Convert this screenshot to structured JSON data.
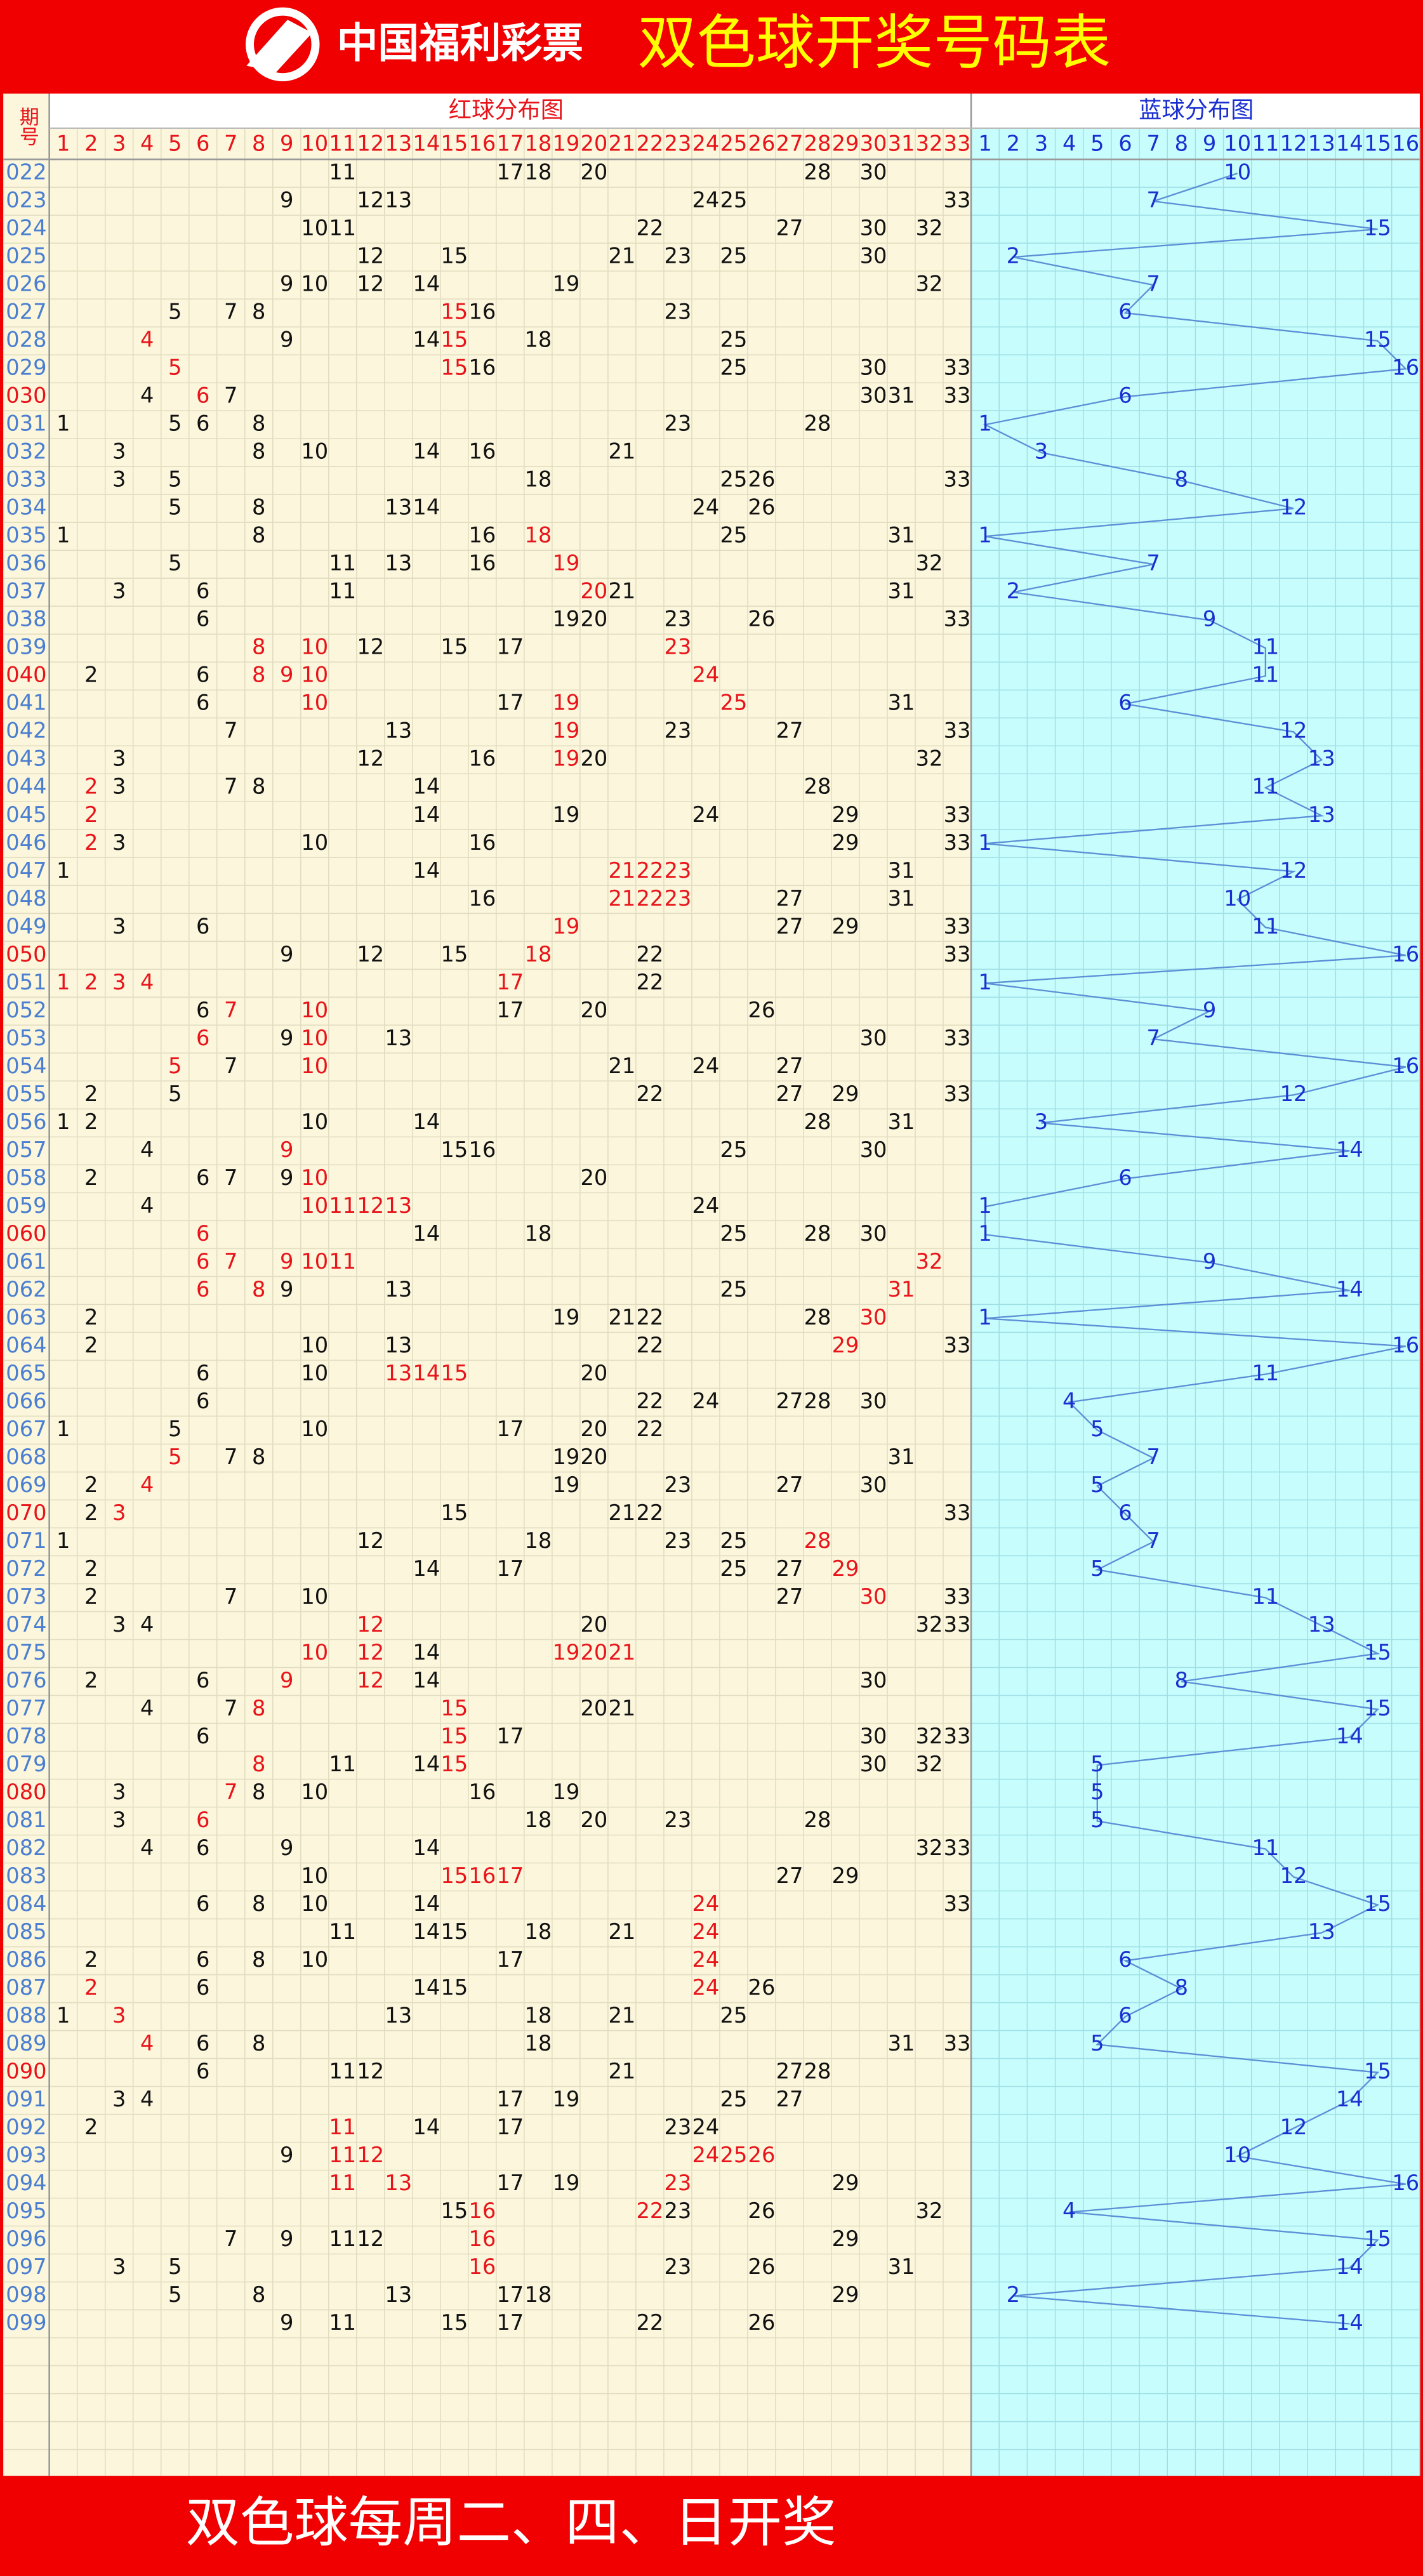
{
  "header": {
    "logo": "中国福利彩票",
    "title": "双色球开奖号码表"
  },
  "table": {
    "period_head": "期号",
    "red_head": "红球分布图",
    "blue_head": "蓝球分布图",
    "red_columns": [
      1,
      2,
      3,
      4,
      5,
      6,
      7,
      8,
      9,
      10,
      11,
      12,
      13,
      14,
      15,
      16,
      17,
      18,
      19,
      20,
      21,
      22,
      23,
      24,
      25,
      26,
      27,
      28,
      29,
      30,
      31,
      32,
      33
    ],
    "blue_columns": [
      1,
      2,
      3,
      4,
      5,
      6,
      7,
      8,
      9,
      10,
      11,
      12,
      13,
      14,
      15,
      16
    ],
    "highlight_color": "#e8141a",
    "rows": [
      {
        "period": "022",
        "red": [
          11,
          17,
          18,
          20,
          28,
          30
        ],
        "blue": 10
      },
      {
        "period": "023",
        "red": [
          9,
          12,
          13,
          24,
          25,
          33
        ],
        "blue": 7
      },
      {
        "period": "024",
        "red": [
          10,
          11,
          22,
          27,
          30,
          32
        ],
        "blue": 15
      },
      {
        "period": "025",
        "red": [
          12,
          15,
          21,
          23,
          25,
          30
        ],
        "blue": 2
      },
      {
        "period": "026",
        "red": [
          9,
          10,
          12,
          14,
          19,
          32
        ],
        "blue": 7
      },
      {
        "period": "027",
        "red": [
          5,
          7,
          8,
          15,
          16,
          23
        ],
        "blue": 6,
        "highlight": [
          15
        ]
      },
      {
        "period": "028",
        "red": [
          4,
          9,
          14,
          15,
          18,
          25
        ],
        "blue": 15,
        "highlight": [
          4,
          15
        ]
      },
      {
        "period": "029",
        "red": [
          5,
          15,
          16,
          25,
          30,
          33
        ],
        "blue": 16,
        "highlight": [
          5,
          15
        ]
      },
      {
        "period": "030",
        "red": [
          4,
          6,
          7,
          30,
          31,
          33
        ],
        "blue": 6,
        "highlight": [
          6
        ],
        "period_red": true
      },
      {
        "period": "031",
        "red": [
          1,
          5,
          6,
          8,
          23,
          28
        ],
        "blue": 1
      },
      {
        "period": "032",
        "red": [
          3,
          8,
          10,
          14,
          16,
          21
        ],
        "blue": 3
      },
      {
        "period": "033",
        "red": [
          3,
          5,
          18,
          25,
          26,
          33
        ],
        "blue": 8
      },
      {
        "period": "034",
        "red": [
          5,
          8,
          13,
          14,
          24,
          26
        ],
        "blue": 12
      },
      {
        "period": "035",
        "red": [
          1,
          8,
          16,
          18,
          25,
          31
        ],
        "blue": 1,
        "highlight": [
          18
        ]
      },
      {
        "period": "036",
        "red": [
          5,
          11,
          13,
          16,
          19,
          32
        ],
        "blue": 7,
        "highlight": [
          19
        ]
      },
      {
        "period": "037",
        "red": [
          3,
          6,
          11,
          20,
          21,
          31
        ],
        "blue": 2,
        "highlight": [
          20
        ]
      },
      {
        "period": "038",
        "red": [
          6,
          19,
          20,
          23,
          26,
          33
        ],
        "blue": 9
      },
      {
        "period": "039",
        "red": [
          8,
          10,
          12,
          15,
          17,
          23
        ],
        "blue": 11,
        "highlight": [
          8,
          10,
          23
        ]
      },
      {
        "period": "040",
        "red": [
          2,
          6,
          8,
          9,
          10,
          24
        ],
        "blue": 11,
        "highlight": [
          8,
          9,
          10,
          24
        ],
        "period_red": true
      },
      {
        "period": "041",
        "red": [
          6,
          10,
          17,
          19,
          25,
          31
        ],
        "blue": 6,
        "highlight": [
          10,
          19,
          25
        ]
      },
      {
        "period": "042",
        "red": [
          7,
          13,
          19,
          23,
          27,
          33
        ],
        "blue": 12,
        "highlight": [
          19
        ]
      },
      {
        "period": "043",
        "red": [
          3,
          12,
          16,
          19,
          20,
          32
        ],
        "blue": 13,
        "highlight": [
          19
        ]
      },
      {
        "period": "044",
        "red": [
          2,
          3,
          7,
          8,
          14,
          28
        ],
        "blue": 11,
        "highlight": [
          2
        ]
      },
      {
        "period": "045",
        "red": [
          2,
          14,
          19,
          24,
          29,
          33
        ],
        "blue": 13,
        "highlight": [
          2
        ]
      },
      {
        "period": "046",
        "red": [
          2,
          3,
          10,
          16,
          29,
          33
        ],
        "blue": 1,
        "highlight": [
          2
        ]
      },
      {
        "period": "047",
        "red": [
          1,
          14,
          21,
          22,
          23,
          31
        ],
        "blue": 12,
        "highlight": [
          21,
          22,
          23
        ]
      },
      {
        "period": "048",
        "red": [
          16,
          21,
          22,
          23,
          27,
          31
        ],
        "blue": 10,
        "highlight": [
          21,
          22,
          23
        ]
      },
      {
        "period": "049",
        "red": [
          3,
          6,
          19,
          27,
          29,
          33
        ],
        "blue": 11,
        "highlight": [
          19
        ]
      },
      {
        "period": "050",
        "red": [
          9,
          12,
          15,
          18,
          22,
          33
        ],
        "blue": 16,
        "highlight": [
          18
        ],
        "period_red": true
      },
      {
        "period": "051",
        "red": [
          1,
          2,
          3,
          4,
          17,
          22
        ],
        "blue": 1,
        "highlight": [
          1,
          2,
          3,
          4,
          17
        ]
      },
      {
        "period": "052",
        "red": [
          6,
          7,
          10,
          17,
          20,
          26
        ],
        "blue": 9,
        "highlight": [
          7,
          10
        ]
      },
      {
        "period": "053",
        "red": [
          6,
          9,
          10,
          13,
          30,
          33
        ],
        "blue": 7,
        "highlight": [
          6,
          10
        ]
      },
      {
        "period": "054",
        "red": [
          5,
          7,
          10,
          21,
          24,
          27
        ],
        "blue": 16,
        "highlight": [
          5,
          10
        ]
      },
      {
        "period": "055",
        "red": [
          2,
          5,
          22,
          27,
          29,
          33
        ],
        "blue": 12
      },
      {
        "period": "056",
        "red": [
          1,
          2,
          10,
          14,
          28,
          31
        ],
        "blue": 3
      },
      {
        "period": "057",
        "red": [
          4,
          9,
          15,
          16,
          25,
          30
        ],
        "blue": 14,
        "highlight": [
          9
        ]
      },
      {
        "period": "058",
        "red": [
          2,
          6,
          7,
          9,
          10,
          20
        ],
        "blue": 6,
        "highlight": [
          10
        ]
      },
      {
        "period": "059",
        "red": [
          4,
          10,
          11,
          12,
          13,
          24
        ],
        "blue": 1,
        "highlight": [
          10,
          11,
          12,
          13
        ]
      },
      {
        "period": "060",
        "red": [
          6,
          14,
          18,
          25,
          28,
          30
        ],
        "blue": 1,
        "highlight": [
          6
        ],
        "period_red": true
      },
      {
        "period": "061",
        "red": [
          6,
          7,
          9,
          10,
          11,
          32
        ],
        "blue": 9,
        "highlight": [
          6,
          7,
          9,
          10,
          11,
          32
        ]
      },
      {
        "period": "062",
        "red": [
          6,
          8,
          9,
          13,
          25,
          31
        ],
        "blue": 14,
        "highlight": [
          6,
          8,
          31
        ]
      },
      {
        "period": "063",
        "red": [
          2,
          19,
          21,
          22,
          28,
          30
        ],
        "blue": 1,
        "highlight": [
          30
        ]
      },
      {
        "period": "064",
        "red": [
          2,
          10,
          13,
          22,
          29,
          33
        ],
        "blue": 16,
        "highlight": [
          29
        ]
      },
      {
        "period": "065",
        "red": [
          6,
          10,
          13,
          14,
          15,
          20
        ],
        "blue": 11,
        "highlight": [
          13,
          14,
          15
        ]
      },
      {
        "period": "066",
        "red": [
          6,
          22,
          24,
          27,
          28,
          30
        ],
        "blue": 4
      },
      {
        "period": "067",
        "red": [
          1,
          5,
          10,
          17,
          20,
          22
        ],
        "blue": 5
      },
      {
        "period": "068",
        "red": [
          5,
          7,
          8,
          19,
          20,
          31
        ],
        "blue": 7,
        "highlight": [
          5
        ]
      },
      {
        "period": "069",
        "red": [
          2,
          4,
          19,
          23,
          27,
          30
        ],
        "blue": 5,
        "highlight": [
          4
        ]
      },
      {
        "period": "070",
        "red": [
          2,
          3,
          15,
          21,
          22,
          33
        ],
        "blue": 6,
        "highlight": [
          3
        ],
        "period_red": true
      },
      {
        "period": "071",
        "red": [
          1,
          12,
          18,
          23,
          25,
          28
        ],
        "blue": 7,
        "highlight": [
          28
        ]
      },
      {
        "period": "072",
        "red": [
          2,
          14,
          17,
          25,
          27,
          29
        ],
        "blue": 5,
        "highlight": [
          29
        ]
      },
      {
        "period": "073",
        "red": [
          2,
          7,
          10,
          27,
          30,
          33
        ],
        "blue": 11,
        "highlight": [
          30
        ]
      },
      {
        "period": "074",
        "red": [
          3,
          4,
          12,
          20,
          32,
          33
        ],
        "blue": 13,
        "highlight": [
          12
        ]
      },
      {
        "period": "075",
        "red": [
          10,
          12,
          14,
          19,
          20,
          21
        ],
        "blue": 15,
        "highlight": [
          10,
          12,
          19,
          20,
          21
        ]
      },
      {
        "period": "076",
        "red": [
          2,
          6,
          9,
          12,
          14,
          30
        ],
        "blue": 8,
        "highlight": [
          9,
          12
        ]
      },
      {
        "period": "077",
        "red": [
          4,
          7,
          8,
          15,
          20,
          21
        ],
        "blue": 15,
        "highlight": [
          8,
          15
        ]
      },
      {
        "period": "078",
        "red": [
          6,
          15,
          17,
          30,
          32,
          33
        ],
        "blue": 14,
        "highlight": [
          15
        ]
      },
      {
        "period": "079",
        "red": [
          8,
          11,
          14,
          15,
          30,
          32
        ],
        "blue": 5,
        "highlight": [
          8,
          15
        ]
      },
      {
        "period": "080",
        "red": [
          3,
          7,
          8,
          10,
          16,
          19
        ],
        "blue": 5,
        "highlight": [
          7
        ],
        "period_red": true
      },
      {
        "period": "081",
        "red": [
          3,
          6,
          18,
          20,
          23,
          28
        ],
        "blue": 5,
        "highlight": [
          6
        ]
      },
      {
        "period": "082",
        "red": [
          4,
          6,
          9,
          14,
          32,
          33
        ],
        "blue": 11
      },
      {
        "period": "083",
        "red": [
          10,
          15,
          16,
          17,
          27,
          29
        ],
        "blue": 12,
        "highlight": [
          15,
          16,
          17
        ]
      },
      {
        "period": "084",
        "red": [
          6,
          8,
          10,
          14,
          24,
          33
        ],
        "blue": 15,
        "highlight": [
          24
        ]
      },
      {
        "period": "085",
        "red": [
          11,
          14,
          15,
          18,
          21,
          24
        ],
        "blue": 13,
        "highlight": [
          24
        ]
      },
      {
        "period": "086",
        "red": [
          2,
          6,
          8,
          10,
          17,
          24
        ],
        "blue": 6,
        "highlight": [
          24
        ]
      },
      {
        "period": "087",
        "red": [
          2,
          6,
          14,
          15,
          24,
          26
        ],
        "blue": 8,
        "highlight": [
          2,
          24
        ]
      },
      {
        "period": "088",
        "red": [
          1,
          3,
          13,
          18,
          21,
          25
        ],
        "blue": 6,
        "highlight": [
          3
        ]
      },
      {
        "period": "089",
        "red": [
          4,
          6,
          8,
          18,
          31,
          33
        ],
        "blue": 5,
        "highlight": [
          4
        ]
      },
      {
        "period": "090",
        "red": [
          6,
          11,
          12,
          21,
          27,
          28
        ],
        "blue": 15,
        "period_red": true
      },
      {
        "period": "091",
        "red": [
          3,
          4,
          17,
          19,
          25,
          27
        ],
        "blue": 14
      },
      {
        "period": "092",
        "red": [
          2,
          11,
          14,
          17,
          23,
          24
        ],
        "blue": 12,
        "highlight": [
          11
        ]
      },
      {
        "period": "093",
        "red": [
          9,
          11,
          12,
          24,
          25,
          26
        ],
        "blue": 10,
        "highlight": [
          11,
          12,
          24,
          25,
          26
        ]
      },
      {
        "period": "094",
        "red": [
          11,
          13,
          17,
          19,
          23,
          29
        ],
        "blue": 16,
        "highlight": [
          11,
          13,
          23
        ]
      },
      {
        "period": "095",
        "red": [
          15,
          16,
          22,
          23,
          26,
          32
        ],
        "blue": 4,
        "highlight": [
          16,
          22
        ]
      },
      {
        "period": "096",
        "red": [
          7,
          9,
          11,
          12,
          16,
          29
        ],
        "blue": 15,
        "highlight": [
          16
        ]
      },
      {
        "period": "097",
        "red": [
          3,
          5,
          16,
          23,
          26,
          31
        ],
        "blue": 14,
        "highlight": [
          16
        ]
      },
      {
        "period": "098",
        "red": [
          5,
          8,
          13,
          17,
          18,
          29
        ],
        "blue": 2
      },
      {
        "period": "099",
        "red": [
          9,
          11,
          15,
          17,
          22,
          26
        ],
        "blue": 14
      }
    ]
  },
  "footer": {
    "text": "双色球每周二、四、日开奖"
  }
}
